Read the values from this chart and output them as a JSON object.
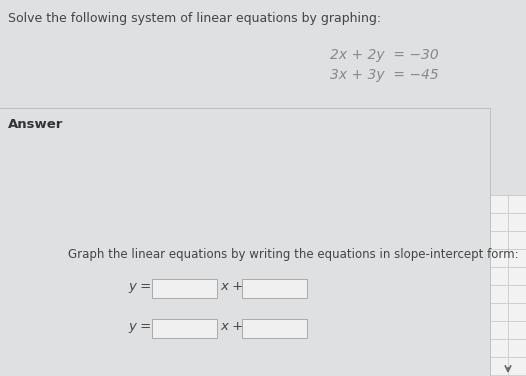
{
  "background_color": "#dfe0e1",
  "title_text": "Solve the following system of linear equations by graphing:",
  "title_fontsize": 9,
  "title_color": "#444444",
  "eq1": "2x + 2y  = −30",
  "eq2": "3x + 3y  = −45",
  "eq_fontsize": 10,
  "eq_color": "#888888",
  "answer_label": "Answer",
  "answer_fontsize": 9.5,
  "answer_color": "#333333",
  "graph_text": "Graph the linear equations by writing the equations in slope-intercept form:",
  "graph_text_fontsize": 8.5,
  "graph_text_color": "#444444",
  "y_eq_text": "y =",
  "x_plus_text": "x +",
  "input_box_color": "#f0f0f0",
  "input_box_edgecolor": "#aaaaaa",
  "divider_color": "#c0c0c0",
  "right_panel_bg": "#e8e8e8",
  "grid_line_color": "#c0c0c0",
  "grid_cell_color": "#f2f2f2"
}
